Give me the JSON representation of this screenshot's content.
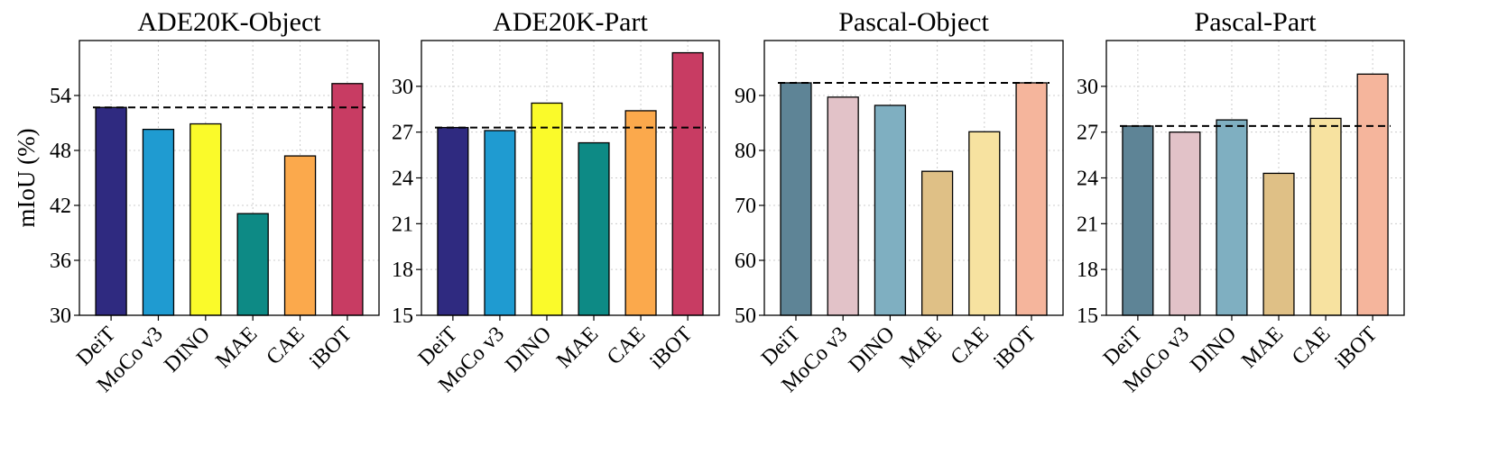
{
  "chart_data": [
    {
      "type": "bar",
      "title": "ADE20K-Object",
      "y_label": "mIoU (%)",
      "categories": [
        "DeiT",
        "MoCo v3",
        "DINO",
        "MAE",
        "CAE",
        "iBOT"
      ],
      "values": [
        52.7,
        50.3,
        50.9,
        41.1,
        47.4,
        55.3
      ],
      "colors": [
        "#2f2a80",
        "#1f9bd1",
        "#fafa2a",
        "#0d8a85",
        "#fba94c",
        "#c83c63"
      ],
      "ylim": [
        30,
        60
      ],
      "yticks": [
        30,
        36,
        42,
        48,
        54
      ],
      "grid": true
    },
    {
      "type": "bar",
      "title": "ADE20K-Part",
      "categories": [
        "DeiT",
        "MoCo v3",
        "DINO",
        "MAE",
        "CAE",
        "iBOT"
      ],
      "values": [
        27.3,
        27.1,
        28.9,
        26.3,
        28.4,
        32.2
      ],
      "colors": [
        "#2f2a80",
        "#1f9bd1",
        "#fafa2a",
        "#0d8a85",
        "#fba94c",
        "#c83c63"
      ],
      "ylim": [
        15,
        33
      ],
      "yticks": [
        15,
        18,
        21,
        24,
        27,
        30
      ],
      "grid": true
    },
    {
      "type": "bar",
      "title": "Pascal-Object",
      "categories": [
        "DeiT",
        "MoCo v3",
        "DINO",
        "MAE",
        "CAE",
        "iBOT"
      ],
      "values": [
        92.3,
        89.7,
        88.2,
        76.2,
        83.4,
        92.3
      ],
      "colors": [
        "#5e8496",
        "#e2c2c8",
        "#7fafc1",
        "#dfc086",
        "#f7e2a0",
        "#f5b59c"
      ],
      "ylim": [
        50,
        100
      ],
      "yticks": [
        50,
        60,
        70,
        80,
        90
      ],
      "grid": true
    },
    {
      "type": "bar",
      "title": "Pascal-Part",
      "categories": [
        "DeiT",
        "MoCo v3",
        "DINO",
        "MAE",
        "CAE",
        "iBOT"
      ],
      "values": [
        27.4,
        27.0,
        27.8,
        24.3,
        27.9,
        30.8
      ],
      "colors": [
        "#5e8496",
        "#e2c2c8",
        "#7fafc1",
        "#dfc086",
        "#f7e2a0",
        "#f5b59c"
      ],
      "ylim": [
        15,
        33
      ],
      "yticks": [
        15,
        18,
        21,
        24,
        27,
        30
      ],
      "grid": true
    }
  ]
}
